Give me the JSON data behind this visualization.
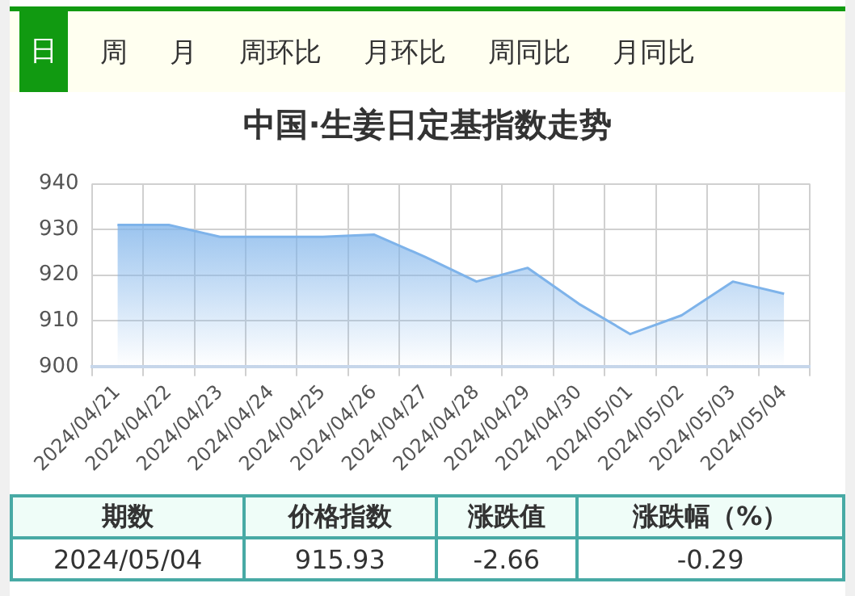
{
  "chart_data": {
    "type": "area",
    "title": "中国·生姜日定基指数走势",
    "categories": [
      "2024/04/21",
      "2024/04/22",
      "2024/04/23",
      "2024/04/24",
      "2024/04/25",
      "2024/04/26",
      "2024/04/27",
      "2024/04/28",
      "2024/04/29",
      "2024/04/30",
      "2024/05/01",
      "2024/05/02",
      "2024/05/03",
      "2024/05/04"
    ],
    "values": [
      931.0,
      931.0,
      928.4,
      928.4,
      928.4,
      928.9,
      924.0,
      918.6,
      921.6,
      913.7,
      907.1,
      911.2,
      918.6,
      915.93
    ],
    "color": "#7eb3ea",
    "ylim": [
      900,
      940
    ],
    "yticks": [
      900,
      910,
      920,
      930,
      940
    ],
    "grid": true,
    "marker": "none",
    "annotations": [
      "日",
      "周",
      "月",
      "周环比",
      "月环比",
      "周同比",
      "月同比",
      "期数",
      "价格指数",
      "涨跌值",
      "涨跌幅（%）",
      "2024/05/04",
      "915.93",
      "-2.66",
      "-0.29"
    ]
  }
}
